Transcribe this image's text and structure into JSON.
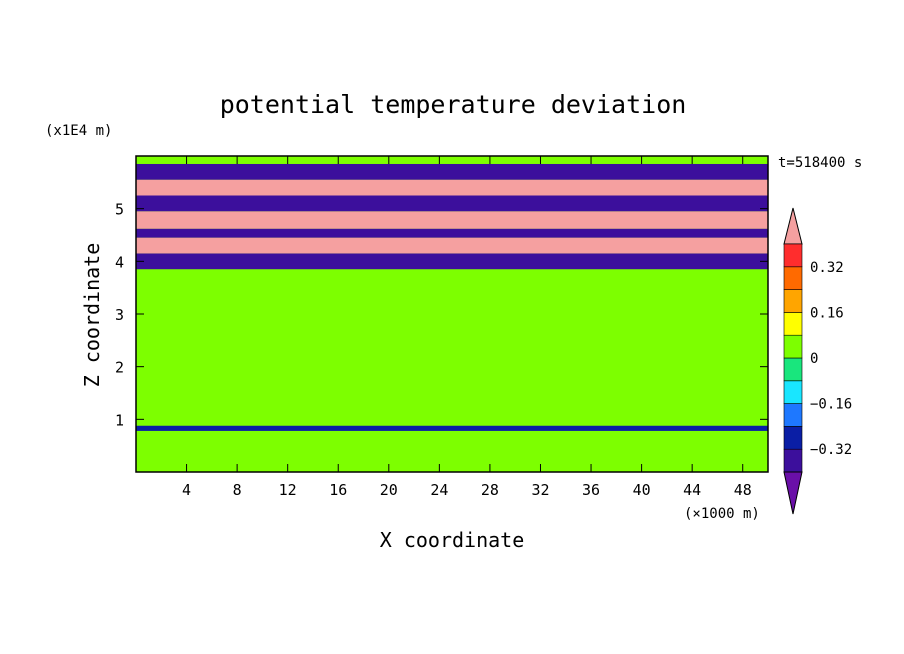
{
  "chart_data": {
    "type": "heatmap",
    "title": "potential temperature deviation",
    "xlabel": "X coordinate",
    "ylabel": "Z coordinate",
    "x_unit": "(×1000 m)",
    "y_unit": "(x1E4 m)",
    "time_label": "t=518400 s",
    "xlim": [
      0,
      50
    ],
    "ylim": [
      0,
      6
    ],
    "x_ticks": [
      4,
      8,
      12,
      16,
      20,
      24,
      28,
      32,
      36,
      40,
      44,
      48
    ],
    "y_ticks": [
      1,
      2,
      3,
      4,
      5
    ],
    "colorbar": {
      "levels": [
        -0.4,
        -0.32,
        -0.24,
        -0.16,
        -0.08,
        0,
        0.08,
        0.16,
        0.24,
        0.32,
        0.4
      ],
      "tick_labels": [
        "0.32",
        "0.16",
        "0",
        "−0.16",
        "−0.32"
      ],
      "tick_values": [
        0.32,
        0.16,
        0,
        -0.16,
        -0.32
      ],
      "colors": [
        "#6a0fa8",
        "#3c0f9c",
        "#0a1ea5",
        "#1e78ff",
        "#19e6ff",
        "#19e67d",
        "#7dff00",
        "#ffff00",
        "#ffa500",
        "#ff6a00",
        "#ff2d2d",
        "#f5a0a0"
      ]
    },
    "bands": [
      {
        "z_from": 0.0,
        "z_to": 0.85,
        "value": 0.04
      },
      {
        "z_from": 0.78,
        "z_to": 0.88,
        "value": -0.3
      },
      {
        "z_from": 0.88,
        "z_to": 3.85,
        "value": 0.04
      },
      {
        "z_from": 3.85,
        "z_to": 4.15,
        "value": -0.36
      },
      {
        "z_from": 4.15,
        "z_to": 4.45,
        "value": 0.42
      },
      {
        "z_from": 4.45,
        "z_to": 4.62,
        "value": -0.38
      },
      {
        "z_from": 4.62,
        "z_to": 4.95,
        "value": 0.42
      },
      {
        "z_from": 4.95,
        "z_to": 5.25,
        "value": -0.38
      },
      {
        "z_from": 5.25,
        "z_to": 5.55,
        "value": 0.42
      },
      {
        "z_from": 5.55,
        "z_to": 5.85,
        "value": -0.36
      },
      {
        "z_from": 5.85,
        "z_to": 6.0,
        "value": 0.04
      }
    ]
  }
}
